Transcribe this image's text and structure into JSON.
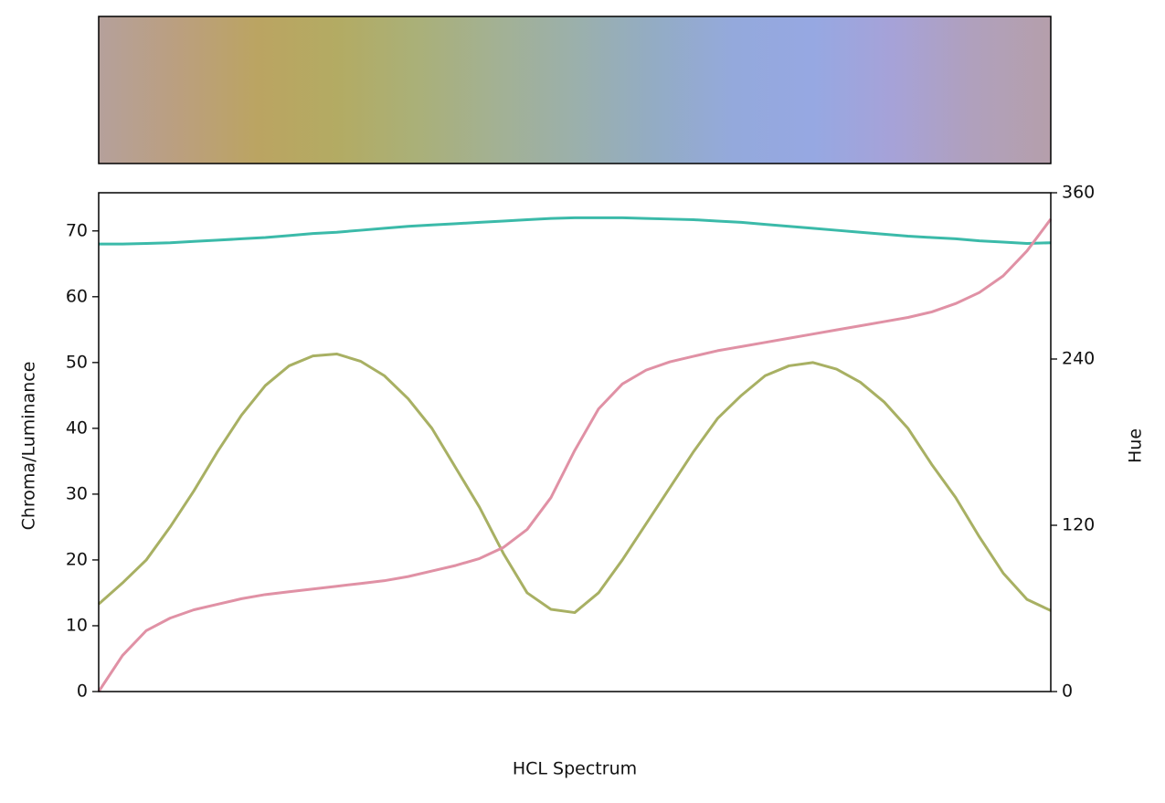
{
  "chart_data": {
    "type": "line",
    "xlabel": "HCL Spectrum",
    "ylabel": "Chroma/Luminance",
    "y2label": "Hue",
    "x": [
      0,
      1,
      2,
      3,
      4,
      5,
      6,
      7,
      8,
      9,
      10,
      11,
      12,
      13,
      14,
      15,
      16,
      17,
      18,
      19,
      20,
      21,
      22,
      23,
      24,
      25,
      26,
      27,
      28,
      29,
      30,
      31,
      32,
      33,
      34,
      35,
      36,
      37,
      38,
      39,
      40
    ],
    "xlim": [
      0,
      40
    ],
    "ylim": [
      0,
      75.8
    ],
    "yticks": [
      0,
      10,
      20,
      30,
      40,
      50,
      60,
      70
    ],
    "y2lim": [
      0,
      360
    ],
    "y2ticks": [
      0,
      120,
      240,
      360
    ],
    "spectrum": [
      "#b5a09b",
      "#bb9f7f",
      "#bba462",
      "#b3ab63",
      "#aab078",
      "#a3b193",
      "#9bb0ab",
      "#93acc4",
      "#94a9dc",
      "#96a8e2",
      "#a6a2d8",
      "#b0a0bd",
      "#b59fab"
    ],
    "series": [
      {
        "color": "#3bbaa9",
        "values": [
          68.0,
          68.0,
          68.1,
          68.2,
          68.4,
          68.6,
          68.8,
          69.0,
          69.3,
          69.6,
          69.8,
          70.1,
          70.4,
          70.7,
          70.9,
          71.1,
          71.3,
          71.5,
          71.7,
          71.9,
          72.0,
          72.0,
          72.0,
          71.9,
          71.8,
          71.7,
          71.5,
          71.3,
          71.0,
          70.7,
          70.4,
          70.1,
          69.8,
          69.5,
          69.2,
          69.0,
          68.8,
          68.5,
          68.3,
          68.1,
          68.2
        ]
      },
      {
        "color": "#a8b063",
        "values": [
          13.3,
          16.5,
          20,
          25,
          30.5,
          36.5,
          42,
          46.5,
          49.5,
          51,
          51.3,
          50.2,
          48,
          44.5,
          40,
          34,
          28,
          21,
          15,
          12.5,
          12,
          15,
          20,
          25.5,
          31,
          36.5,
          41.5,
          45,
          48,
          49.5,
          50,
          49,
          47,
          44,
          40,
          34.5,
          29.5,
          23.5,
          18,
          14,
          12.3
        ]
      },
      {
        "color": "#e091a5",
        "axis": "y2",
        "values": [
          0,
          26,
          44,
          53,
          59,
          63,
          67,
          70,
          72,
          74,
          76,
          78,
          80,
          83,
          87,
          91,
          96,
          104,
          117,
          140,
          174,
          204,
          222,
          232,
          238,
          242,
          246,
          249,
          252,
          255,
          258,
          261,
          264,
          267,
          270,
          274,
          280,
          288,
          300,
          318,
          341
        ]
      }
    ]
  }
}
